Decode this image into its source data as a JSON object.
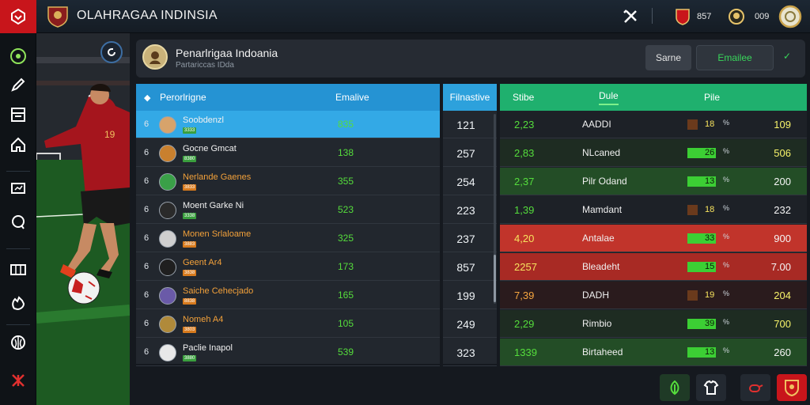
{
  "app": {
    "title": "OLAHRAGAA INDINSIA"
  },
  "topbar": {
    "stat1": "857",
    "stat2": "009"
  },
  "sidebar": {
    "items": [
      {
        "label": "",
        "icon": "target-icon"
      },
      {
        "label": "",
        "icon": "edit-icon"
      },
      {
        "label": "",
        "icon": "calendar-icon"
      },
      {
        "label": "",
        "icon": "home-icon"
      },
      {
        "label": "",
        "icon": "stats-icon"
      },
      {
        "label": "",
        "icon": "chat-icon"
      },
      {
        "label": "",
        "icon": "table-icon"
      },
      {
        "label": "",
        "icon": "hand-icon"
      },
      {
        "label": "",
        "icon": "shield-icon"
      },
      {
        "label": "",
        "icon": "brand-icon"
      }
    ]
  },
  "header": {
    "team_name": "Penarlrigaa Indoania",
    "team_sub": "Partariccas IDda",
    "btn_a": "Sarne",
    "btn_b": "Emailee"
  },
  "columns": {
    "h1": "Perorlrigne",
    "h1b": "Emalive",
    "h2": "Filnastive",
    "h3a": "Stibe",
    "h3b": "Dule",
    "h3c": "Pile"
  },
  "players": [
    {
      "rank": "6",
      "name": "Soobdenzl",
      "tag": "3333",
      "tag_color": "#3a9f3e",
      "value": "835",
      "mid": "121",
      "selected": true
    },
    {
      "rank": "6",
      "name": "Gocne Gmcat",
      "tag": "8380",
      "tag_color": "#3a9f3e",
      "value": "138",
      "mid": "257",
      "selected": false
    },
    {
      "rank": "6",
      "name": "Nerlande Gaenes",
      "tag": "3833",
      "tag_color": "#d77a1d",
      "value": "355",
      "mid": "254",
      "selected": false
    },
    {
      "rank": "6",
      "name": "Moent Garke Ni",
      "tag": "3338",
      "tag_color": "#3a9f3e",
      "value": "523",
      "mid": "223",
      "selected": false
    },
    {
      "rank": "6",
      "name": "Monen Srlaloame",
      "tag": "3883",
      "tag_color": "#d77a1d",
      "value": "325",
      "mid": "237",
      "selected": false
    },
    {
      "rank": "6",
      "name": "Geent Ar4",
      "tag": "3838",
      "tag_color": "#d77a1d",
      "value": "173",
      "mid": "857",
      "selected": false
    },
    {
      "rank": "6",
      "name": "Saiche Cehecjado",
      "tag": "8838",
      "tag_color": "#d77a1d",
      "value": "165",
      "mid": "199",
      "selected": false
    },
    {
      "rank": "6",
      "name": "Nomeh A4",
      "tag": "3803",
      "tag_color": "#d77a1d",
      "value": "105",
      "mid": "249",
      "selected": false
    },
    {
      "rank": "6",
      "name": "Paclie Inapol",
      "tag": "3880",
      "tag_color": "#3a9f3e",
      "value": "539",
      "mid": "323",
      "selected": false
    }
  ],
  "stats": [
    {
      "c1": "2,23",
      "c1_color": "#55dd3c",
      "name": "AADDI",
      "bar": "18",
      "fill": 0.35,
      "mark": "1",
      "pct": "%",
      "val": "109",
      "bg": "#1d2127"
    },
    {
      "c1": "2,83",
      "c1_color": "#55dd3c",
      "name": "NLcaned",
      "bar": "26",
      "fill": 0.95,
      "mark": "",
      "pct": "%",
      "val": "506",
      "bg": "#1e2c22"
    },
    {
      "c1": "2,37",
      "c1_color": "#55dd3c",
      "name": "Pilr Odand",
      "bar": "13",
      "fill": 0.95,
      "mark": "0",
      "pct": "%",
      "val": "200",
      "bg": "#234d26"
    },
    {
      "c1": "1,39",
      "c1_color": "#55dd3c",
      "name": "Mamdant",
      "bar": "18",
      "fill": 0.35,
      "mark": "9",
      "pct": "%",
      "val": "232",
      "bg": "#1d2127"
    },
    {
      "c1": "4,20",
      "c1_color": "#f7e35e",
      "name": "Antalae",
      "bar": "33",
      "fill": 0.95,
      "mark": "",
      "pct": "%",
      "val": "900",
      "bg": "#c1342b"
    },
    {
      "c1": "2257",
      "c1_color": "#f7e35e",
      "name": "Bleadeht",
      "bar": "15",
      "fill": 0.95,
      "mark": "0",
      "pct": "%",
      "val": "7.00",
      "bg": "#a82a24"
    },
    {
      "c1": "7,39",
      "c1_color": "#f7a640",
      "name": "DADH",
      "bar": "19",
      "fill": 0.35,
      "mark": "1",
      "pct": "%",
      "val": "204",
      "bg": "#2a1b1d"
    },
    {
      "c1": "2,29",
      "c1_color": "#55dd3c",
      "name": "Rimbio",
      "bar": "39",
      "fill": 0.95,
      "mark": "",
      "pct": "%",
      "val": "700",
      "bg": "#1e2c22"
    },
    {
      "c1": "1339",
      "c1_color": "#55dd3c",
      "name": "Birtaheed",
      "bar": "13",
      "fill": 0.95,
      "mark": "0",
      "pct": "%",
      "val": "260",
      "bg": "#234d26"
    }
  ],
  "colors": {
    "accent_blue": "#2593d3",
    "accent_green": "#1fb06e",
    "brand_red": "#c8151b",
    "positive": "#55dd3c",
    "highlight": "#f7f36a"
  }
}
